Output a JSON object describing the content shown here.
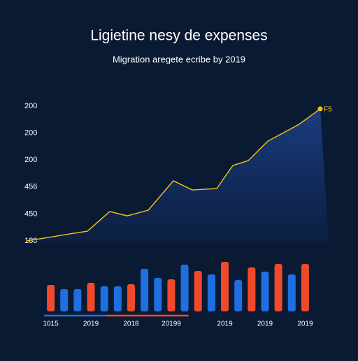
{
  "chart_data": [
    {
      "type": "area",
      "title": "Ligietine nesy de expenses",
      "subtitle": "Migration aregete ecribe by 2019",
      "x": [
        0,
        32,
        62,
        87,
        119,
        144,
        174,
        210,
        237,
        272,
        295,
        317,
        345,
        390,
        420
      ],
      "values": [
        0,
        0.13,
        0.26,
        0.36,
        1.09,
        0.93,
        1.14,
        2.23,
        1.89,
        1.94,
        2.8,
        2.98,
        3.7,
        4.33,
        4.9
      ],
      "xlim": [
        0,
        432
      ],
      "ylim": [
        0,
        5
      ],
      "yticks": [
        {
          "value": 0,
          "label": "180"
        },
        {
          "value": 1,
          "label": "450"
        },
        {
          "value": 2,
          "label": "456"
        },
        {
          "value": 3,
          "label": "200"
        },
        {
          "value": 4,
          "label": "200"
        },
        {
          "value": 5,
          "label": "200"
        }
      ],
      "color": "#f2c418",
      "fill": "#1d3f86",
      "annotation": "F5",
      "grid": false
    },
    {
      "type": "bar",
      "categories": [
        "1015",
        null,
        null,
        "2019",
        null,
        null,
        "2018",
        null,
        null,
        "20199",
        null,
        null,
        null,
        "2019",
        null,
        null,
        "2019",
        null,
        null,
        "2019"
      ],
      "values": [
        38,
        32,
        32,
        41,
        36,
        36,
        39,
        61,
        48,
        46,
        67,
        58,
        53,
        71,
        45,
        63,
        57,
        68,
        53,
        68
      ],
      "colors": [
        "#f04a2a",
        "#1e6fe0",
        "#1e6fe0",
        "#f04a2a",
        "#1e6fe0",
        "#1e6fe0",
        "#f04a2a",
        "#1e6fe0",
        "#1e6fe0",
        "#f04a2a",
        "#1e6fe0",
        "#f04a2a",
        "#1e6fe0",
        "#f04a2a",
        "#1e6fe0",
        "#f04a2a",
        "#1e6fe0",
        "#f04a2a",
        "#1e6fe0",
        "#f04a2a"
      ],
      "ylim": [
        0,
        75
      ]
    }
  ]
}
